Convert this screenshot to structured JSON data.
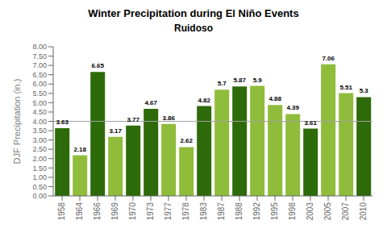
{
  "chart_data": {
    "type": "bar",
    "title": "Winter Precipitation during El Niño Events",
    "subtitle": "Ruidoso",
    "ylabel": "DJF Precipitation (in.)",
    "categories": [
      "1958",
      "1964",
      "1966",
      "1969",
      "1970",
      "1973",
      "1977",
      "1978",
      "1983",
      "1987",
      "1988",
      "1992",
      "1995",
      "1998",
      "2003",
      "2005",
      "2007",
      "2010"
    ],
    "values": [
      3.63,
      2.18,
      6.65,
      3.17,
      3.77,
      4.67,
      3.86,
      2.62,
      4.82,
      5.7,
      5.87,
      5.9,
      4.88,
      4.39,
      3.61,
      7.06,
      5.51,
      5.3
    ],
    "colors": [
      "#2d6a0a",
      "#8fbc3a",
      "#2d6a0a",
      "#8fbc3a",
      "#2d6a0a",
      "#2d6a0a",
      "#8fbc3a",
      "#8fbc3a",
      "#2d6a0a",
      "#8fbc3a",
      "#2d6a0a",
      "#8fbc3a",
      "#8fbc3a",
      "#8fbc3a",
      "#2d6a0a",
      "#8fbc3a",
      "#8fbc3a",
      "#2d6a0a"
    ],
    "reference_line": {
      "value": 4,
      "color": "#a0a0a0"
    },
    "ylim": [
      0,
      8
    ],
    "yticks": [
      {
        "value": 0,
        "label": "0.00"
      },
      {
        "value": 0.5,
        "label": "0.50"
      },
      {
        "value": 1,
        "label": "1.00"
      },
      {
        "value": 1.5,
        "label": "1.50"
      },
      {
        "value": 2,
        "label": "2.00"
      },
      {
        "value": 2.5,
        "label": "2.50"
      },
      {
        "value": 3,
        "label": "3.00"
      },
      {
        "value": 3.5,
        "label": "3.50"
      },
      {
        "value": 4,
        "label": "4.00"
      },
      {
        "value": 4.5,
        "label": "4.50"
      },
      {
        "value": 5,
        "label": "5.00"
      },
      {
        "value": 5.5,
        "label": "5.50"
      },
      {
        "value": 6,
        "label": "6.00"
      },
      {
        "value": 6.5,
        "label": "6.50"
      },
      {
        "value": 7,
        "label": "7.00"
      },
      {
        "value": 7.5,
        "label": "7.50"
      },
      {
        "value": 8,
        "label": "8.00"
      }
    ],
    "data_labels": true,
    "grid": false
  }
}
